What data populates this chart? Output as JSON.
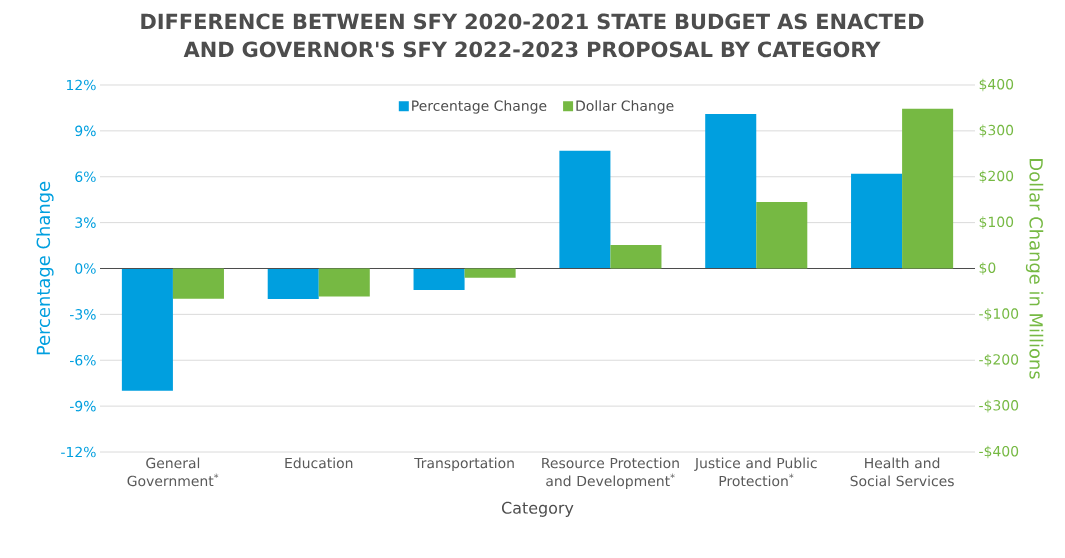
{
  "chart_data": {
    "type": "bar",
    "title": "DIFFERENCE BETWEEN SFY 2020-2021 STATE BUDGET AS ENACTED AND GOVERNOR'S SFY 2022-2023 PROPOSAL BY CATEGORY",
    "xlabel": "Category",
    "ylabel": "Percentage Change",
    "y2label": "Dollar Change in Millions",
    "categories": [
      "General Government$^{*}$",
      "Education",
      "Transportation",
      "Resource Protection and Development$^{*}$",
      "Justice and Public Protection$^{*}$",
      "Health and Social Services"
    ],
    "series": [
      {
        "name": "Percentage Change",
        "color": "#009fdf",
        "values": [
          -8.0,
          -2.0,
          -1.4,
          7.7,
          10.1,
          6.2
        ]
      },
      {
        "name": "Dollar Change",
        "color": "#76b943",
        "axis": "y2",
        "values": [
          -66,
          -61,
          -20,
          51,
          145,
          348
        ]
      }
    ],
    "ylim": [
      -12,
      12
    ],
    "yticks": [
      {
        "value": -12,
        "label": "-12%"
      },
      {
        "value": -9,
        "label": "-9%"
      },
      {
        "value": -6,
        "label": "-6%"
      },
      {
        "value": -3,
        "label": "-3%"
      },
      {
        "value": 0,
        "label": "0%"
      },
      {
        "value": 3,
        "label": "3%"
      },
      {
        "value": 6,
        "label": "6%"
      },
      {
        "value": 9,
        "label": "9%"
      },
      {
        "value": 12,
        "label": "12%"
      }
    ],
    "y2lim": [
      -400,
      400
    ],
    "y2ticks": [
      {
        "value": -400,
        "label": "-$400"
      },
      {
        "value": -300,
        "label": "-$300"
      },
      {
        "value": -200,
        "label": "-$200"
      },
      {
        "value": -100,
        "label": "-$100"
      },
      {
        "value": 0,
        "label": "$0"
      },
      {
        "value": 100,
        "label": "$100"
      },
      {
        "value": 200,
        "label": "$200"
      },
      {
        "value": 300,
        "label": "$300"
      },
      {
        "value": 400,
        "label": "$400"
      }
    ],
    "grid": "y",
    "legend": "top"
  }
}
